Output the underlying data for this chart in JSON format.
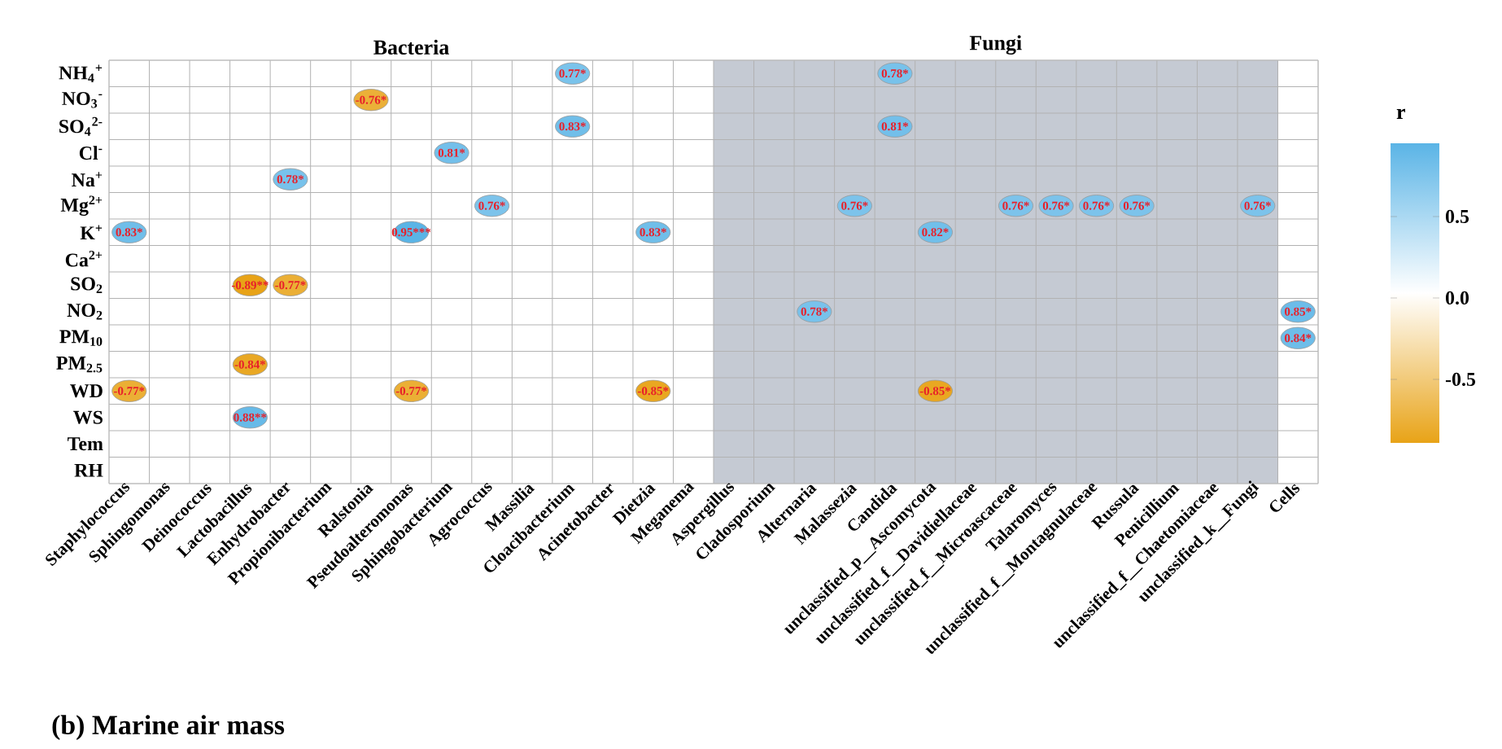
{
  "chart_data": {
    "type": "heatmap",
    "categories": [
      "Staphylococcus",
      "Sphingomonas",
      "Deinococcus",
      "Lactobacillus",
      "Enhydrobacter",
      "Propionibacterium",
      "Ralstonia",
      "Pseudoalteromonas",
      "Sphingobacterium",
      "Agrococcus",
      "Massilia",
      "Cloacibacterium",
      "Acinetobacter",
      "Dietzia",
      "Meganema",
      "Aspergillus",
      "Cladosporium",
      "Alternaria",
      "Malassezia",
      "Candida",
      "unclassified_p__Ascomycota",
      "unclassified_f__Davidiellaceae",
      "unclassified_f__Microascaceae",
      "Talaromyces",
      "unclassified_f__Montagnulaceae",
      "Russula",
      "Penicillium",
      "unclassified_f__Chaetomiaceae",
      "unclassified_k__Fungi",
      "Cells"
    ],
    "y_categories": [
      "NH$_{4}$$^{+}$",
      "NO$_{3}$$^{-}$",
      "SO$_{4}$$^{2-}$",
      "Cl$^{-}$",
      "Na$^{+}$",
      "Mg$^{2+}$",
      "K$^{+}$",
      "Ca$^{2+}$",
      "SO$_{2}$",
      "NO$_{2}$",
      "PM$_{10}$",
      "PM$_{2.5}$",
      "WD",
      "WS",
      "Tem",
      "RH"
    ],
    "cells": [
      [
        null,
        null,
        null,
        null,
        null,
        null,
        null,
        null,
        null,
        null,
        null,
        0.77,
        null,
        null,
        null,
        null,
        null,
        null,
        null,
        0.78,
        null,
        null,
        null,
        null,
        null,
        null,
        null,
        null,
        null,
        null
      ],
      [
        null,
        null,
        null,
        null,
        null,
        null,
        -0.76,
        null,
        null,
        null,
        null,
        null,
        null,
        null,
        null,
        null,
        null,
        null,
        null,
        null,
        null,
        null,
        null,
        null,
        null,
        null,
        null,
        null,
        null,
        null
      ],
      [
        null,
        null,
        null,
        null,
        null,
        null,
        null,
        null,
        null,
        null,
        null,
        0.83,
        null,
        null,
        null,
        null,
        null,
        null,
        null,
        0.81,
        null,
        null,
        null,
        null,
        null,
        null,
        null,
        null,
        null,
        null
      ],
      [
        null,
        null,
        null,
        null,
        null,
        null,
        null,
        null,
        0.81,
        null,
        null,
        null,
        null,
        null,
        null,
        null,
        null,
        null,
        null,
        null,
        null,
        null,
        null,
        null,
        null,
        null,
        null,
        null,
        null,
        null
      ],
      [
        null,
        null,
        null,
        null,
        0.78,
        null,
        null,
        null,
        null,
        null,
        null,
        null,
        null,
        null,
        null,
        null,
        null,
        null,
        null,
        null,
        null,
        null,
        null,
        null,
        null,
        null,
        null,
        null,
        null,
        null
      ],
      [
        null,
        null,
        null,
        null,
        null,
        null,
        null,
        null,
        null,
        0.76,
        null,
        null,
        null,
        null,
        null,
        null,
        null,
        null,
        0.76,
        null,
        null,
        null,
        0.76,
        0.76,
        0.76,
        0.76,
        null,
        null,
        0.76,
        null
      ],
      [
        0.83,
        null,
        null,
        null,
        null,
        null,
        null,
        0.95,
        null,
        null,
        null,
        null,
        null,
        0.83,
        null,
        null,
        null,
        null,
        null,
        null,
        0.82,
        null,
        null,
        null,
        null,
        null,
        null,
        null,
        null,
        null
      ],
      [
        null,
        null,
        null,
        null,
        null,
        null,
        null,
        null,
        null,
        null,
        null,
        null,
        null,
        null,
        null,
        null,
        null,
        null,
        null,
        null,
        null,
        null,
        null,
        null,
        null,
        null,
        null,
        null,
        null,
        null
      ],
      [
        null,
        null,
        null,
        -0.89,
        -0.77,
        null,
        null,
        null,
        null,
        null,
        null,
        null,
        null,
        null,
        null,
        null,
        null,
        null,
        null,
        null,
        null,
        null,
        null,
        null,
        null,
        null,
        null,
        null,
        null,
        null
      ],
      [
        null,
        null,
        null,
        null,
        null,
        null,
        null,
        null,
        null,
        null,
        null,
        null,
        null,
        null,
        null,
        null,
        null,
        0.78,
        null,
        null,
        null,
        null,
        null,
        null,
        null,
        null,
        null,
        null,
        null,
        0.85
      ],
      [
        null,
        null,
        null,
        null,
        null,
        null,
        null,
        null,
        null,
        null,
        null,
        null,
        null,
        null,
        null,
        null,
        null,
        null,
        null,
        null,
        null,
        null,
        null,
        null,
        null,
        null,
        null,
        null,
        null,
        0.84
      ],
      [
        null,
        null,
        null,
        -0.84,
        null,
        null,
        null,
        null,
        null,
        null,
        null,
        null,
        null,
        null,
        null,
        null,
        null,
        null,
        null,
        null,
        null,
        null,
        null,
        null,
        null,
        null,
        null,
        null,
        null,
        null
      ],
      [
        -0.77,
        null,
        null,
        null,
        null,
        null,
        null,
        -0.77,
        null,
        null,
        null,
        null,
        null,
        -0.85,
        null,
        null,
        null,
        null,
        null,
        null,
        -0.85,
        null,
        null,
        null,
        null,
        null,
        null,
        null,
        null,
        null
      ],
      [
        null,
        null,
        null,
        0.88,
        null,
        null,
        null,
        null,
        null,
        null,
        null,
        null,
        null,
        null,
        null,
        null,
        null,
        null,
        null,
        null,
        null,
        null,
        null,
        null,
        null,
        null,
        null,
        null,
        null,
        null
      ],
      [
        null,
        null,
        null,
        null,
        null,
        null,
        null,
        null,
        null,
        null,
        null,
        null,
        null,
        null,
        null,
        null,
        null,
        null,
        null,
        null,
        null,
        null,
        null,
        null,
        null,
        null,
        null,
        null,
        null,
        null
      ],
      [
        null,
        null,
        null,
        null,
        null,
        null,
        null,
        null,
        null,
        null,
        null,
        null,
        null,
        null,
        null,
        null,
        null,
        null,
        null,
        null,
        null,
        null,
        null,
        null,
        null,
        null,
        null,
        null,
        null,
        null
      ]
    ],
    "cell_labels": [
      [
        null,
        null,
        null,
        null,
        null,
        null,
        null,
        null,
        null,
        null,
        null,
        "0.77*",
        null,
        null,
        null,
        null,
        null,
        null,
        null,
        "0.78*",
        null,
        null,
        null,
        null,
        null,
        null,
        null,
        null,
        null,
        null
      ],
      [
        null,
        null,
        null,
        null,
        null,
        null,
        "-0.76*",
        null,
        null,
        null,
        null,
        null,
        null,
        null,
        null,
        null,
        null,
        null,
        null,
        null,
        null,
        null,
        null,
        null,
        null,
        null,
        null,
        null,
        null,
        null
      ],
      [
        null,
        null,
        null,
        null,
        null,
        null,
        null,
        null,
        null,
        null,
        null,
        "0.83*",
        null,
        null,
        null,
        null,
        null,
        null,
        null,
        "0.81*",
        null,
        null,
        null,
        null,
        null,
        null,
        null,
        null,
        null,
        null
      ],
      [
        null,
        null,
        null,
        null,
        null,
        null,
        null,
        null,
        "0.81*",
        null,
        null,
        null,
        null,
        null,
        null,
        null,
        null,
        null,
        null,
        null,
        null,
        null,
        null,
        null,
        null,
        null,
        null,
        null,
        null,
        null
      ],
      [
        null,
        null,
        null,
        null,
        "0.78*",
        null,
        null,
        null,
        null,
        null,
        null,
        null,
        null,
        null,
        null,
        null,
        null,
        null,
        null,
        null,
        null,
        null,
        null,
        null,
        null,
        null,
        null,
        null,
        null,
        null
      ],
      [
        null,
        null,
        null,
        null,
        null,
        null,
        null,
        null,
        null,
        "0.76*",
        null,
        null,
        null,
        null,
        null,
        null,
        null,
        null,
        "0.76*",
        null,
        null,
        null,
        "0.76*",
        "0.76*",
        "0.76*",
        "0.76*",
        null,
        null,
        "0.76*",
        null
      ],
      [
        "0.83*",
        null,
        null,
        null,
        null,
        null,
        null,
        "0.95***",
        null,
        null,
        null,
        null,
        null,
        "0.83*",
        null,
        null,
        null,
        null,
        null,
        null,
        "0.82*",
        null,
        null,
        null,
        null,
        null,
        null,
        null,
        null,
        null
      ],
      [
        null,
        null,
        null,
        null,
        null,
        null,
        null,
        null,
        null,
        null,
        null,
        null,
        null,
        null,
        null,
        null,
        null,
        null,
        null,
        null,
        null,
        null,
        null,
        null,
        null,
        null,
        null,
        null,
        null,
        null
      ],
      [
        null,
        null,
        null,
        "-0.89**",
        "-0.77*",
        null,
        null,
        null,
        null,
        null,
        null,
        null,
        null,
        null,
        null,
        null,
        null,
        null,
        null,
        null,
        null,
        null,
        null,
        null,
        null,
        null,
        null,
        null,
        null,
        null
      ],
      [
        null,
        null,
        null,
        null,
        null,
        null,
        null,
        null,
        null,
        null,
        null,
        null,
        null,
        null,
        null,
        null,
        null,
        "0.78*",
        null,
        null,
        null,
        null,
        null,
        null,
        null,
        null,
        null,
        null,
        null,
        "0.85*"
      ],
      [
        null,
        null,
        null,
        null,
        null,
        null,
        null,
        null,
        null,
        null,
        null,
        null,
        null,
        null,
        null,
        null,
        null,
        null,
        null,
        null,
        null,
        null,
        null,
        null,
        null,
        null,
        null,
        null,
        null,
        "0.84*"
      ],
      [
        null,
        null,
        null,
        "-0.84*",
        null,
        null,
        null,
        null,
        null,
        null,
        null,
        null,
        null,
        null,
        null,
        null,
        null,
        null,
        null,
        null,
        null,
        null,
        null,
        null,
        null,
        null,
        null,
        null,
        null,
        null
      ],
      [
        "-0.77*",
        null,
        null,
        null,
        null,
        null,
        null,
        "-0.77*",
        null,
        null,
        null,
        null,
        null,
        "-0.85*",
        null,
        null,
        null,
        null,
        null,
        null,
        "-0.85*",
        null,
        null,
        null,
        null,
        null,
        null,
        null,
        null,
        null
      ],
      [
        null,
        null,
        null,
        "0.88**",
        null,
        null,
        null,
        null,
        null,
        null,
        null,
        null,
        null,
        null,
        null,
        null,
        null,
        null,
        null,
        null,
        null,
        null,
        null,
        null,
        null,
        null,
        null,
        null,
        null,
        null
      ],
      [
        null,
        null,
        null,
        null,
        null,
        null,
        null,
        null,
        null,
        null,
        null,
        null,
        null,
        null,
        null,
        null,
        null,
        null,
        null,
        null,
        null,
        null,
        null,
        null,
        null,
        null,
        null,
        null,
        null,
        null
      ],
      [
        null,
        null,
        null,
        null,
        null,
        null,
        null,
        null,
        null,
        null,
        null,
        null,
        null,
        null,
        null,
        null,
        null,
        null,
        null,
        null,
        null,
        null,
        null,
        null,
        null,
        null,
        null,
        null,
        null,
        null
      ]
    ],
    "clim": [
      -0.89,
      0.95
    ],
    "cticks": [
      -0.5,
      {
        "value": 0,
        "label": "0.0"
      },
      0.5
    ],
    "clabel": "r",
    "grid": true,
    "bands": [
      {
        "axis": "x",
        "from": "Aspergillus",
        "to": "unclassified_k__Fungi",
        "label": "Fungi",
        "color": "#c5cad3"
      }
    ],
    "annotations": [
      "Bacteria",
      "(b)  Marine air mass"
    ]
  }
}
